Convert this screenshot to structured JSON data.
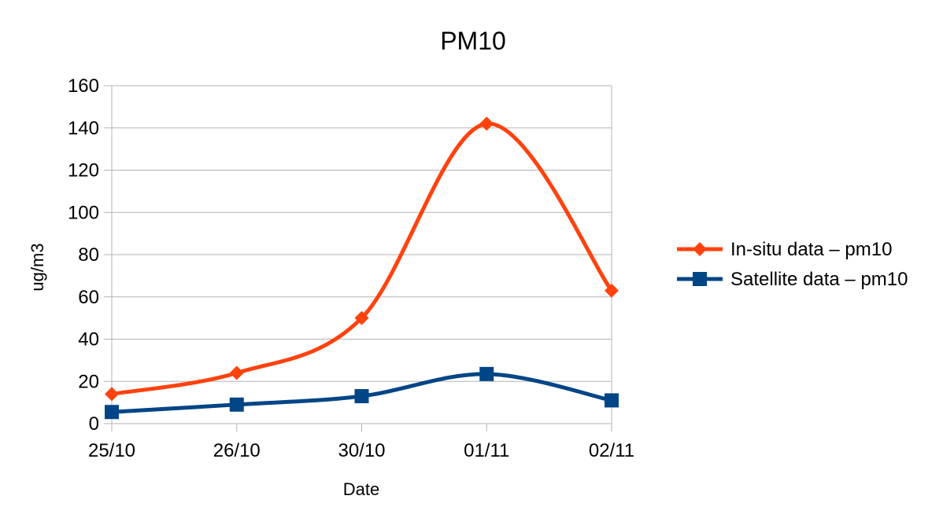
{
  "chart_data": {
    "type": "line",
    "title": "PM10",
    "xlabel": "Date",
    "ylabel": "ug/m3",
    "categories": [
      "25/10",
      "26/10",
      "30/10",
      "01/11",
      "02/11"
    ],
    "ylim": [
      0,
      160
    ],
    "yticks": [
      "0",
      "20",
      "40",
      "60",
      "80",
      "100",
      "120",
      "140",
      "160"
    ],
    "grid": true,
    "legend": "right",
    "smooth": true,
    "series": [
      {
        "name": "In-situ data – pm10",
        "values": [
          14,
          24,
          50,
          142,
          63
        ],
        "color": "#ff420e",
        "marker": "diamond"
      },
      {
        "name": "Satellite data – pm10",
        "values": [
          5.5,
          9,
          13,
          23.5,
          11
        ],
        "color": "#004586",
        "marker": "square"
      }
    ]
  }
}
